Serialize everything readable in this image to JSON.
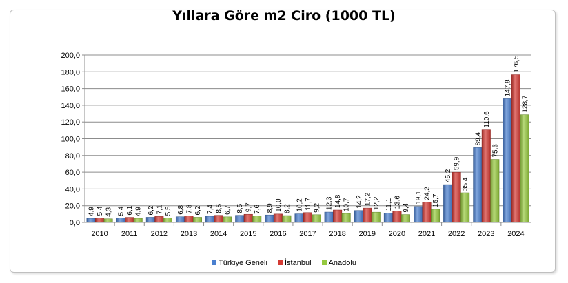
{
  "chart_data": {
    "type": "bar",
    "title": "Yıllara Göre m2 Ciro (1000 TL)",
    "categories": [
      "2010",
      "2011",
      "2012",
      "2013",
      "2014",
      "2015",
      "2016",
      "2017",
      "2018",
      "2019",
      "2020",
      "2021",
      "2022",
      "2023",
      "2024"
    ],
    "series": [
      {
        "name": "Türkiye Geneli",
        "color": "#4a7fcf",
        "values": [
          4.9,
          5.4,
          6.2,
          6.8,
          7.4,
          8.5,
          8.9,
          10.2,
          12.3,
          14.2,
          11.1,
          19.1,
          45.2,
          89.4,
          147.8
        ],
        "labels": [
          "4,9",
          "5,4",
          "6,2",
          "6,8",
          "7,4",
          "8,5",
          "8,9",
          "10,2",
          "12,3",
          "14,2",
          "11,1",
          "19,1",
          "45,2",
          "89,4",
          "147,8"
        ]
      },
      {
        "name": "İstanbul",
        "color": "#d43a34",
        "values": [
          5.4,
          6.1,
          7.1,
          7.8,
          8.5,
          9.7,
          10.0,
          11.7,
          14.8,
          17.2,
          13.6,
          24.2,
          59.9,
          110.6,
          176.5
        ],
        "labels": [
          "5,4",
          "6,1",
          "7,1",
          "7,8",
          "8,5",
          "9,7",
          "10,0",
          "11,7",
          "14,8",
          "17,2",
          "13,6",
          "24,2",
          "59,9",
          "110,6",
          "176,5"
        ]
      },
      {
        "name": "Anadolu",
        "color": "#96c940",
        "values": [
          4.3,
          4.9,
          5.5,
          6.2,
          6.7,
          7.6,
          8.2,
          9.2,
          10.7,
          12.2,
          9.4,
          15.7,
          35.4,
          75.3,
          128.7
        ],
        "labels": [
          "4,3",
          "4,9",
          "5,5",
          "6,2",
          "6,7",
          "7,6",
          "8,2",
          "9,2",
          "10,7",
          "12,2",
          "9,4",
          "15,7",
          "35,4",
          "75,3",
          "128,7"
        ]
      }
    ],
    "ylim": [
      0,
      200
    ],
    "yticks": [
      "0,0",
      "20,0",
      "40,0",
      "60,0",
      "80,0",
      "100,0",
      "120,0",
      "140,0",
      "160,0",
      "180,0",
      "200,0"
    ],
    "xlabel": "",
    "ylabel": "",
    "grid": true,
    "legend": "bottom"
  }
}
